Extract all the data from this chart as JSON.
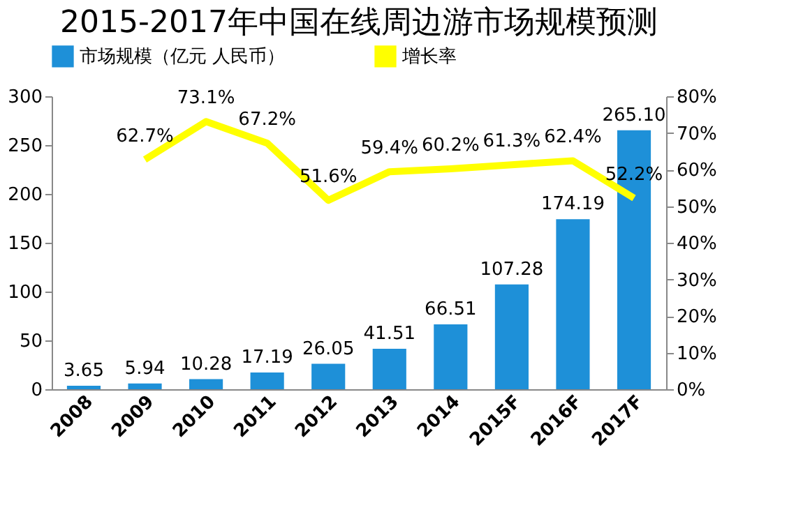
{
  "chart_data": {
    "type": "bar",
    "title": "2015-2017年中国在线周边游市场规模预测",
    "categories": [
      "2008",
      "2009",
      "2010",
      "2011",
      "2012",
      "2013",
      "2014",
      "2015F",
      "2016F",
      "2017F"
    ],
    "series": [
      {
        "name": "市场规模（亿元 人民币）",
        "color": "#1e90d8",
        "values": [
          3.65,
          5.94,
          10.28,
          17.19,
          26.05,
          41.51,
          66.51,
          107.28,
          174.19,
          265.1
        ],
        "value_labels": [
          "3.65",
          "5.94",
          "10.28",
          "17.19",
          "26.05",
          "41.51",
          "66.51",
          "107.28",
          "174.19",
          "265.10"
        ]
      },
      {
        "name": "增长率",
        "type": "line",
        "axis": "y2",
        "color": "#ffff00",
        "values": [
          null,
          62.7,
          73.1,
          67.2,
          51.6,
          59.4,
          60.2,
          61.3,
          62.4,
          52.2
        ],
        "value_labels": [
          null,
          "62.7%",
          "73.1%",
          "67.2%",
          "51.6%",
          "59.4%",
          "60.2%",
          "61.3%",
          "62.4%",
          "52.2%"
        ]
      }
    ],
    "ylim": [
      0,
      300
    ],
    "yticks": [
      0,
      50,
      100,
      150,
      200,
      250,
      300
    ],
    "y2lim": [
      0,
      80
    ],
    "y2ticks": [
      {
        "value": 0,
        "label": "0%"
      },
      {
        "value": 10,
        "label": "10%"
      },
      {
        "value": 20,
        "label": "20%"
      },
      {
        "value": 30,
        "label": "30%"
      },
      {
        "value": 40,
        "label": "40%"
      },
      {
        "value": 50,
        "label": "50%"
      },
      {
        "value": 60,
        "label": "60%"
      },
      {
        "value": 70,
        "label": "70%"
      },
      {
        "value": 80,
        "label": "80%"
      }
    ],
    "grid": false,
    "legend": "top",
    "marker": "none",
    "line_style": "solid"
  }
}
